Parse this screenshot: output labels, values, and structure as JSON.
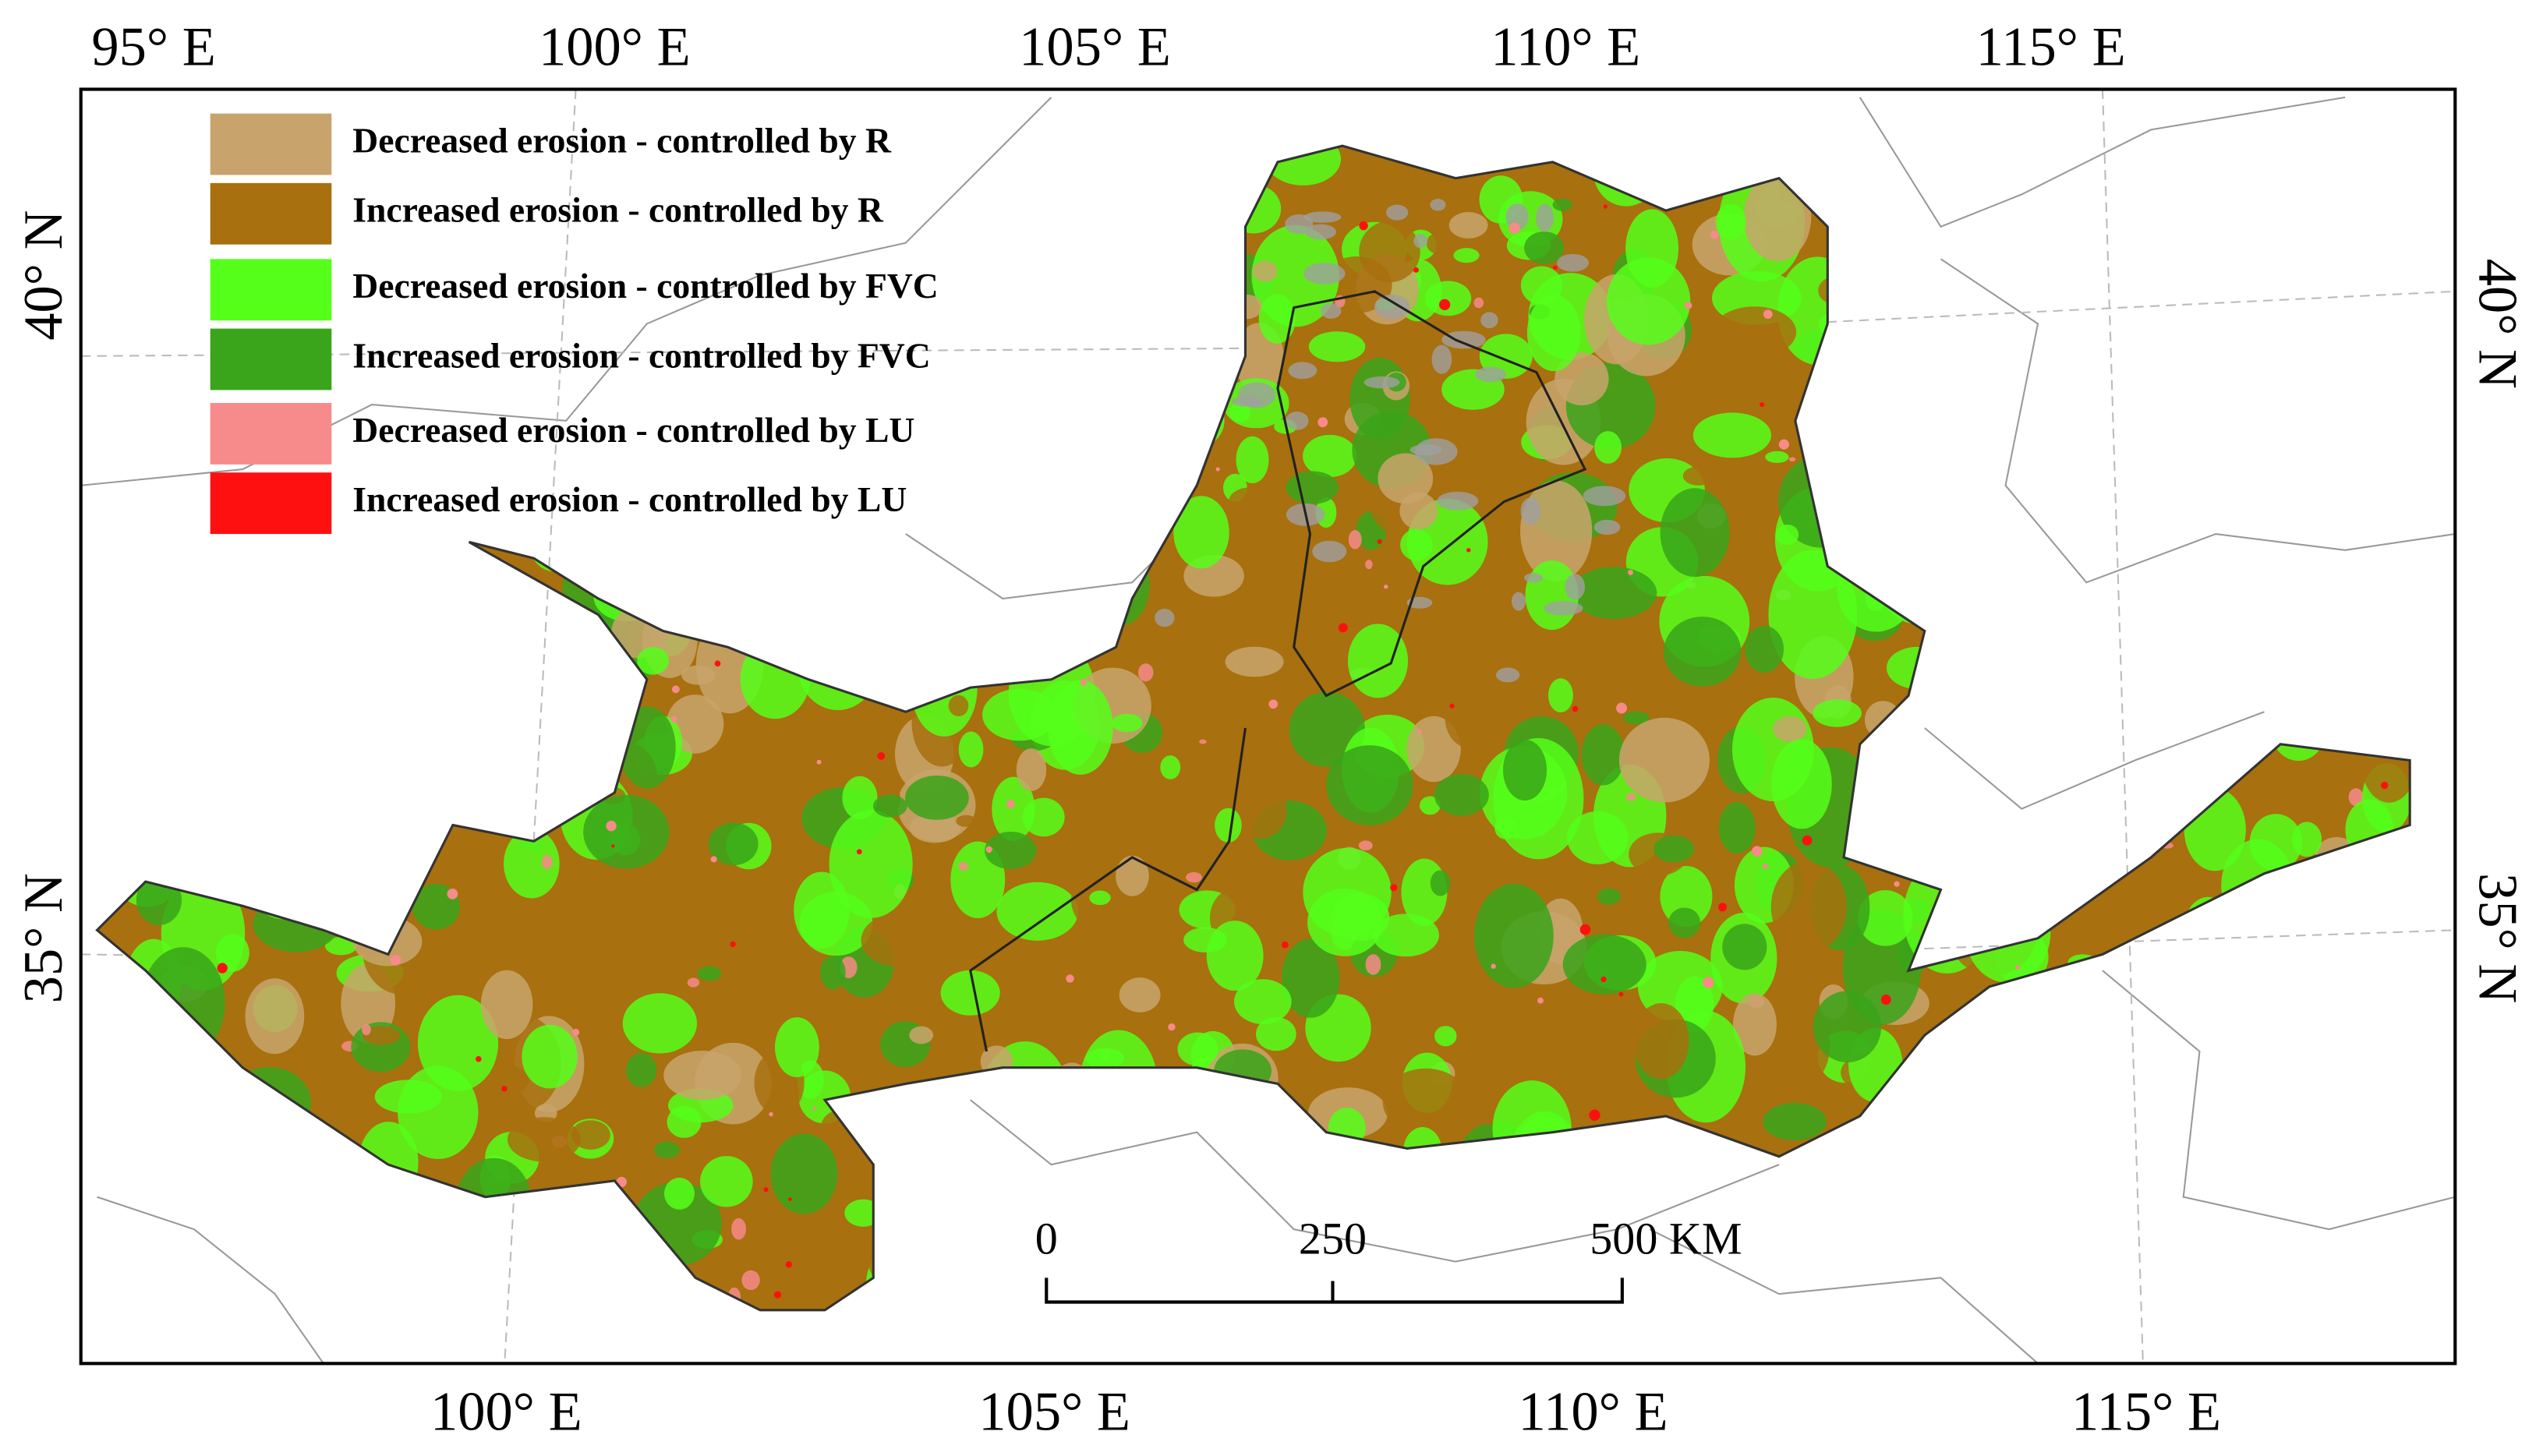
{
  "map": {
    "top_labels": [
      "95° E",
      "100° E",
      "105° E",
      "110° E",
      "115° E"
    ],
    "bottom_labels": [
      "100° E",
      "105° E",
      "110° E",
      "115° E"
    ],
    "left_labels": [
      "40° N",
      "35° N"
    ],
    "right_labels": [
      "40° N",
      "35° N"
    ],
    "legend": [
      {
        "label": "Decreased erosion - controlled by R",
        "color": "#c8a46c"
      },
      {
        "label": "Increased erosion - controlled by R",
        "color": "#a8700e"
      },
      {
        "label": "Decreased erosion - controlled by FVC",
        "color": "#55ff1a"
      },
      {
        "label": "Increased erosion - controlled by FVC",
        "color": "#3aa51a"
      },
      {
        "label": "Decreased erosion - controlled by LU",
        "color": "#f78a8a"
      },
      {
        "label": "Increased erosion - controlled by LU",
        "color": "#ff1010"
      }
    ],
    "scale_bar": [
      "0",
      "250",
      "500 KM"
    ]
  }
}
